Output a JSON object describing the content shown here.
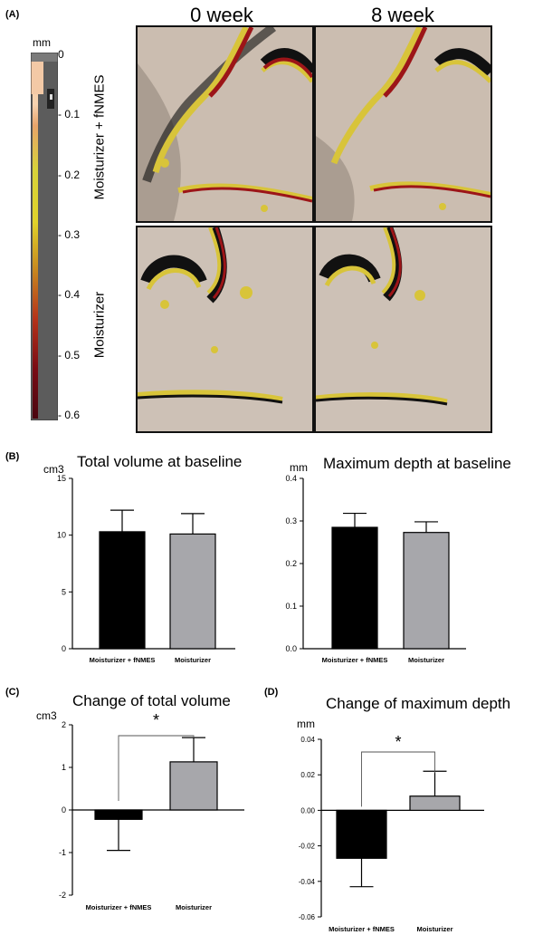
{
  "figure": {
    "panel_a": {
      "letter": "(A)",
      "columns": [
        "0 week",
        "8 week"
      ],
      "rows": [
        "Moisturizer + fNMES",
        "Moisturizer"
      ],
      "scale": {
        "unit": "mm",
        "ticks": [
          "0",
          "- 0.1",
          "- 0.2",
          "- 0.3",
          "- 0.4",
          "- 0.5",
          "- 0.6"
        ]
      }
    },
    "panel_b_letter": "(B)",
    "panel_c_letter": "(C)",
    "panel_d_letter": "(D)",
    "colors": {
      "fnmes_bar": "#000000",
      "moisturizer_bar": "#a7a7ab",
      "photo_skin": "#cdbfb2"
    }
  },
  "chart_data": [
    {
      "id": "total-volume-baseline",
      "type": "bar",
      "title": "Total volume at baseline",
      "ylabel": "cm3",
      "categories": [
        "Moisturizer + fNMES",
        "Moisturizer"
      ],
      "values": [
        10.3,
        10.1
      ],
      "errors": [
        1.9,
        1.8
      ],
      "ylim": [
        0,
        15
      ],
      "yticks": [
        0,
        5,
        10,
        15
      ],
      "ytick_labels": [
        "0",
        "5",
        "10",
        "15"
      ],
      "colors": [
        "#000000",
        "#a7a7ab"
      ],
      "significance": null
    },
    {
      "id": "max-depth-baseline",
      "type": "bar",
      "title": "Maximum depth at baseline",
      "ylabel": "mm",
      "categories": [
        "Moisturizer + fNMES",
        "Moisturizer"
      ],
      "values": [
        0.285,
        0.273
      ],
      "errors": [
        0.033,
        0.025
      ],
      "ylim": [
        0,
        0.4
      ],
      "yticks": [
        0,
        0.1,
        0.2,
        0.3,
        0.4
      ],
      "ytick_labels": [
        "0.0",
        "0.1",
        "0.2",
        "0.3",
        "0.4"
      ],
      "colors": [
        "#000000",
        "#a7a7ab"
      ],
      "significance": null
    },
    {
      "id": "change-total-volume",
      "type": "bar",
      "title": "Change of total volume",
      "ylabel": "cm3",
      "categories": [
        "Moisturizer + fNMES",
        "Moisturizer"
      ],
      "values": [
        -0.22,
        1.13
      ],
      "errors": [
        0.73,
        0.57
      ],
      "ylim": [
        -2,
        2
      ],
      "yticks": [
        -2,
        -1,
        0,
        1,
        2
      ],
      "ytick_labels": [
        "-2",
        "-1",
        "0",
        "1",
        "2"
      ],
      "colors": [
        "#000000",
        "#a7a7ab"
      ],
      "significance": "*"
    },
    {
      "id": "change-max-depth",
      "type": "bar",
      "title": "Change of maximum depth",
      "ylabel": "mm",
      "categories": [
        "Moisturizer + fNMES",
        "Moisturizer"
      ],
      "values": [
        -0.027,
        0.008
      ],
      "errors": [
        0.016,
        0.014
      ],
      "ylim": [
        -0.06,
        0.04
      ],
      "yticks": [
        -0.06,
        -0.04,
        -0.02,
        0,
        0.02,
        0.04
      ],
      "ytick_labels": [
        "-0.06",
        "-0.04",
        "-0.02",
        "0.00",
        "0.02",
        "0.04"
      ],
      "colors": [
        "#000000",
        "#a7a7ab"
      ],
      "significance": "*"
    }
  ]
}
